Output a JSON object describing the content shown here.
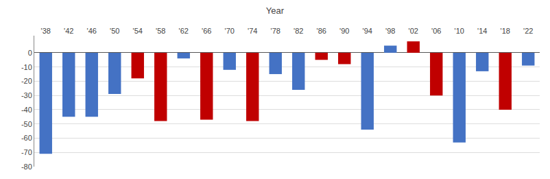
{
  "chart_data": {
    "type": "bar",
    "title": "Year",
    "categories": [
      "'38",
      "'42",
      "'46",
      "'50",
      "'54",
      "'58",
      "'62",
      "'66",
      "'70",
      "'74",
      "'78",
      "'82",
      "'86",
      "'90",
      "'94",
      "'98",
      "'02",
      "'06",
      "'10",
      "'14",
      "'18",
      "'22"
    ],
    "values": [
      -71,
      -45,
      -45,
      -29,
      -18,
      -48,
      -4,
      -47,
      -12,
      -48,
      -15,
      -26,
      -5,
      -8,
      -54,
      5,
      8,
      -30,
      -63,
      -13,
      -40,
      -9
    ],
    "colors": [
      "#4472C4",
      "#4472C4",
      "#4472C4",
      "#4472C4",
      "#C00000",
      "#C00000",
      "#4472C4",
      "#C00000",
      "#4472C4",
      "#C00000",
      "#4472C4",
      "#4472C4",
      "#C00000",
      "#C00000",
      "#4472C4",
      "#4472C4",
      "#C00000",
      "#C00000",
      "#4472C4",
      "#4472C4",
      "#C00000",
      "#4472C4"
    ],
    "ylim": [
      -80,
      12
    ],
    "yticks": [
      0,
      -10,
      -20,
      -30,
      -40,
      -50,
      -60,
      -70,
      -80
    ],
    "grid": true
  }
}
